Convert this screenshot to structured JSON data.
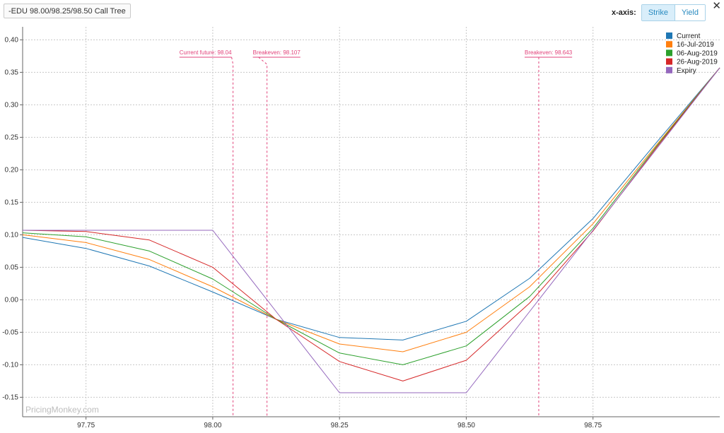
{
  "header": {
    "title": "-EDU 98.00/98.25/98.50 Call Tree",
    "xaxis_label": "x-axis:",
    "strike_label": "Strike",
    "yield_label": "Yield",
    "close_glyph": "✕"
  },
  "watermark": "PricingMonkey.com",
  "colors": {
    "Current": "#1f77b4",
    "16-Jul-2019": "#ff7f0e",
    "06-Aug-2019": "#2ca02c",
    "26-Aug-2019": "#d62728",
    "Expiry": "#9467bd",
    "annotation": "#e2437b"
  },
  "chart_data": {
    "type": "line",
    "x": [
      97.625,
      97.75,
      97.875,
      98.0,
      98.125,
      98.25,
      98.375,
      98.5,
      98.625,
      98.75,
      98.875,
      99.0
    ],
    "xlim": [
      97.625,
      99.0
    ],
    "ylim": [
      -0.18,
      0.42
    ],
    "xticks": [
      "97.75",
      "98.00",
      "98.25",
      "98.50",
      "98.75"
    ],
    "xtick_values": [
      97.75,
      98.0,
      98.25,
      98.5,
      98.75
    ],
    "yticks": [
      "0.40",
      "0.35",
      "0.30",
      "0.25",
      "0.20",
      "0.15",
      "0.10",
      "0.05",
      "0.00",
      "-0.05",
      "-0.10",
      "-0.15"
    ],
    "ytick_values": [
      0.4,
      0.35,
      0.3,
      0.25,
      0.2,
      0.15,
      0.1,
      0.05,
      0.0,
      -0.05,
      -0.1,
      -0.15
    ],
    "grid": true,
    "legend_position": "top-right",
    "series": [
      {
        "name": "Current",
        "values": [
          0.096,
          0.079,
          0.052,
          0.012,
          -0.03,
          -0.058,
          -0.062,
          -0.033,
          0.033,
          0.125,
          0.242,
          0.357
        ]
      },
      {
        "name": "16-Jul-2019",
        "values": [
          0.1,
          0.088,
          0.062,
          0.02,
          -0.03,
          -0.068,
          -0.08,
          -0.05,
          0.02,
          0.117,
          0.238,
          0.357
        ]
      },
      {
        "name": "06-Aug-2019",
        "values": [
          0.103,
          0.097,
          0.075,
          0.032,
          -0.03,
          -0.082,
          -0.1,
          -0.071,
          0.005,
          0.11,
          0.236,
          0.357
        ]
      },
      {
        "name": "26-Aug-2019",
        "values": [
          0.107,
          0.105,
          0.092,
          0.05,
          -0.03,
          -0.095,
          -0.125,
          -0.093,
          -0.005,
          0.106,
          0.234,
          0.357
        ]
      },
      {
        "name": "Expiry",
        "values": [
          0.107,
          0.107,
          0.107,
          0.107,
          -0.018,
          -0.143,
          -0.143,
          -0.143,
          -0.018,
          0.107,
          0.232,
          0.357
        ]
      }
    ],
    "annotations": [
      {
        "label": "Current future: 98.04",
        "x": 98.04
      },
      {
        "label": "Breakeven: 98.107",
        "x": 98.107
      },
      {
        "label": "Breakeven: 98.643",
        "x": 98.643
      }
    ]
  }
}
